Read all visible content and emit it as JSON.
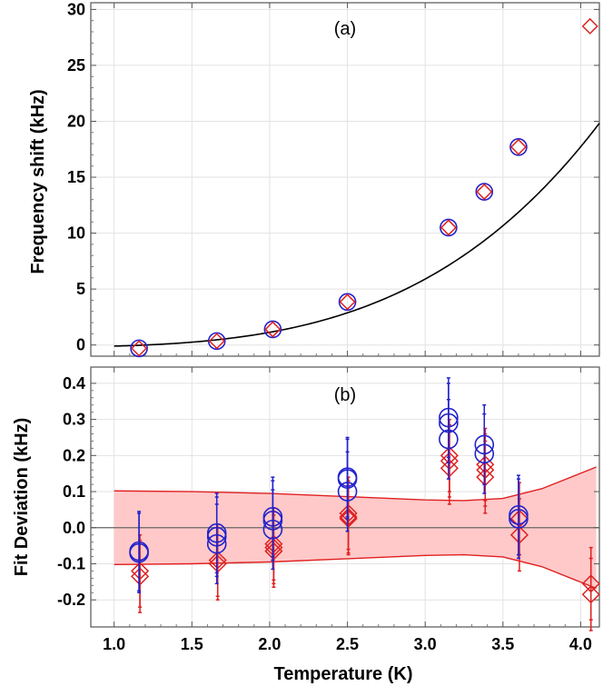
{
  "chart_data": [
    {
      "type": "scatter",
      "panel_label": "(a)",
      "xlabel": "",
      "ylabel": "Frequency shift (kHz)",
      "xlim": [
        0.85,
        4.12
      ],
      "ylim": [
        -1.0,
        30.6
      ],
      "x_ticks": [
        1.0,
        1.5,
        2.0,
        2.5,
        3.0,
        3.5,
        4.0
      ],
      "y_ticks": [
        0,
        5,
        10,
        15,
        20,
        25,
        30
      ],
      "y_tick_labels": [
        "0",
        "5",
        "10",
        "15",
        "20",
        "25",
        "30"
      ],
      "grid": true,
      "series": [
        {
          "marker": "circle",
          "color": "#2222cc",
          "x": [
            1.16,
            1.66,
            2.02,
            2.5,
            3.15,
            3.38,
            3.6
          ],
          "y": [
            -0.3,
            0.35,
            1.4,
            3.85,
            10.5,
            13.7,
            17.7
          ]
        },
        {
          "marker": "diamond",
          "color": "#e02020",
          "x": [
            1.16,
            1.66,
            2.02,
            2.5,
            3.15,
            3.38,
            3.6,
            4.06
          ],
          "y": [
            -0.3,
            0.35,
            1.4,
            3.85,
            10.5,
            13.7,
            17.7,
            28.5
          ]
        },
        {
          "marker": "line",
          "color": "#000000",
          "fit": "power-law fit",
          "fit_coeff": 0.099,
          "fit_exponent": 3.75
        }
      ]
    },
    {
      "type": "scatter",
      "panel_label": "(b)",
      "xlabel": "Temperature (K)",
      "ylabel": "Fit Deviation (kHz)",
      "xlim": [
        0.85,
        4.12
      ],
      "ylim": [
        -0.275,
        0.445
      ],
      "x_ticks": [
        1.0,
        1.5,
        2.0,
        2.5,
        3.0,
        3.5,
        4.0
      ],
      "x_tick_labels": [
        "1.0",
        "1.5",
        "2.0",
        "2.5",
        "3.0",
        "3.5",
        "4.0"
      ],
      "y_ticks": [
        -0.2,
        -0.1,
        0.0,
        0.1,
        0.2,
        0.3,
        0.4
      ],
      "y_tick_labels": [
        "-0.2",
        "-0.1",
        "0.0",
        "0.1",
        "0.2",
        "0.3",
        "0.4"
      ],
      "grid": true,
      "band": {
        "color": "#f08080",
        "x": [
          1.0,
          1.5,
          2.0,
          2.5,
          3.0,
          3.25,
          3.5,
          3.75,
          4.1
        ],
        "upper": [
          0.102,
          0.1,
          0.095,
          0.086,
          0.077,
          0.075,
          0.081,
          0.108,
          0.168
        ]
      },
      "series": [
        {
          "marker": "circle",
          "color": "#2222cc",
          "yerr": 0.11,
          "points": [
            [
              1.16,
              -0.065
            ],
            [
              1.16,
              -0.07
            ],
            [
              1.66,
              -0.015
            ],
            [
              1.66,
              -0.025
            ],
            [
              1.66,
              -0.045
            ],
            [
              2.02,
              0.03
            ],
            [
              2.02,
              0.02
            ],
            [
              2.02,
              -0.005
            ],
            [
              2.5,
              0.14
            ],
            [
              2.5,
              0.135
            ],
            [
              2.5,
              0.1
            ],
            [
              3.15,
              0.305
            ],
            [
              3.15,
              0.29
            ],
            [
              3.15,
              0.245
            ],
            [
              3.38,
              0.23
            ],
            [
              3.38,
              0.205
            ],
            [
              3.6,
              0.035
            ],
            [
              3.6,
              0.025
            ]
          ]
        },
        {
          "marker": "diamond",
          "color": "#e02020",
          "yerr": 0.1,
          "points": [
            [
              1.16,
              -0.12
            ],
            [
              1.16,
              -0.135
            ],
            [
              1.66,
              -0.09
            ],
            [
              1.66,
              -0.1
            ],
            [
              2.02,
              -0.045
            ],
            [
              2.02,
              -0.055
            ],
            [
              2.02,
              -0.065
            ],
            [
              2.5,
              0.04
            ],
            [
              2.5,
              0.03
            ],
            [
              2.5,
              0.025
            ],
            [
              3.15,
              0.2
            ],
            [
              3.15,
              0.185
            ],
            [
              3.15,
              0.165
            ],
            [
              3.38,
              0.175
            ],
            [
              3.38,
              0.16
            ],
            [
              3.38,
              0.14
            ],
            [
              3.6,
              0.025
            ],
            [
              3.6,
              -0.02
            ],
            [
              4.06,
              -0.155
            ],
            [
              4.06,
              -0.185
            ]
          ]
        }
      ]
    }
  ]
}
